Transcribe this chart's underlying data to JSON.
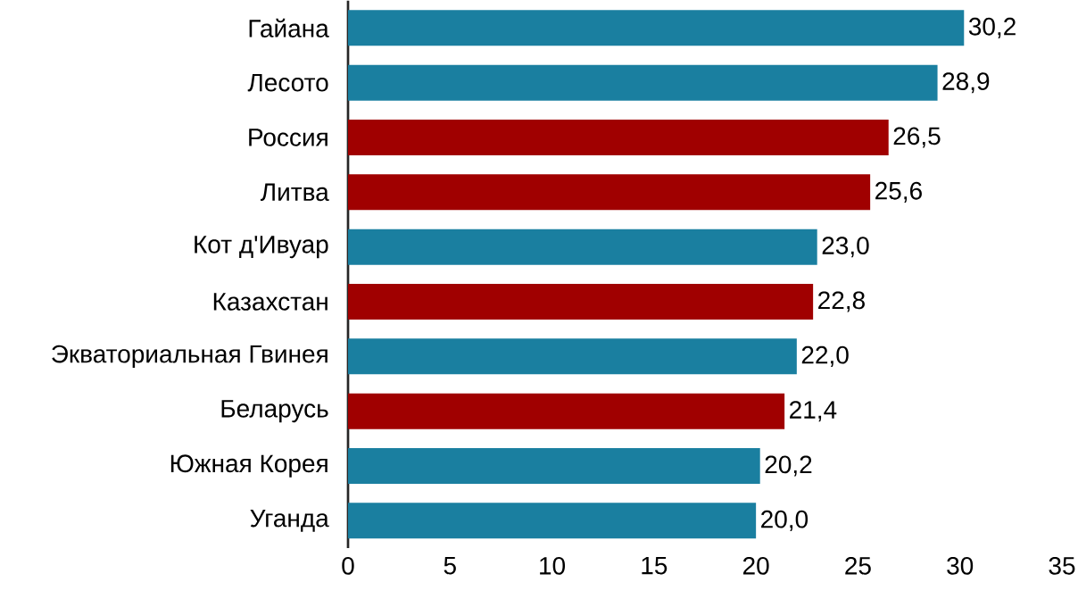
{
  "chart_data": {
    "type": "bar",
    "orientation": "horizontal",
    "categories": [
      "Гайана",
      "Лесото",
      "Россия",
      "Литва",
      "Кот д'Ивуар",
      "Казахстан",
      "Экваториальная Гвинея",
      "Беларусь",
      "Южная Корея",
      "Уганда"
    ],
    "values": [
      30.2,
      28.9,
      26.5,
      25.6,
      23.0,
      22.8,
      22.0,
      21.4,
      20.2,
      20.0
    ],
    "value_labels": [
      "30,2",
      "28,9",
      "26,5",
      "25,6",
      "23,0",
      "22,8",
      "22,0",
      "21,4",
      "20,2",
      "20,0"
    ],
    "colors": [
      "#1a7fa0",
      "#1a7fa0",
      "#a00000",
      "#a00000",
      "#1a7fa0",
      "#a00000",
      "#1a7fa0",
      "#a00000",
      "#1a7fa0",
      "#1a7fa0"
    ],
    "xlim": [
      0,
      35
    ],
    "xticks": [
      0,
      5,
      10,
      15,
      20,
      25,
      30,
      35
    ]
  }
}
